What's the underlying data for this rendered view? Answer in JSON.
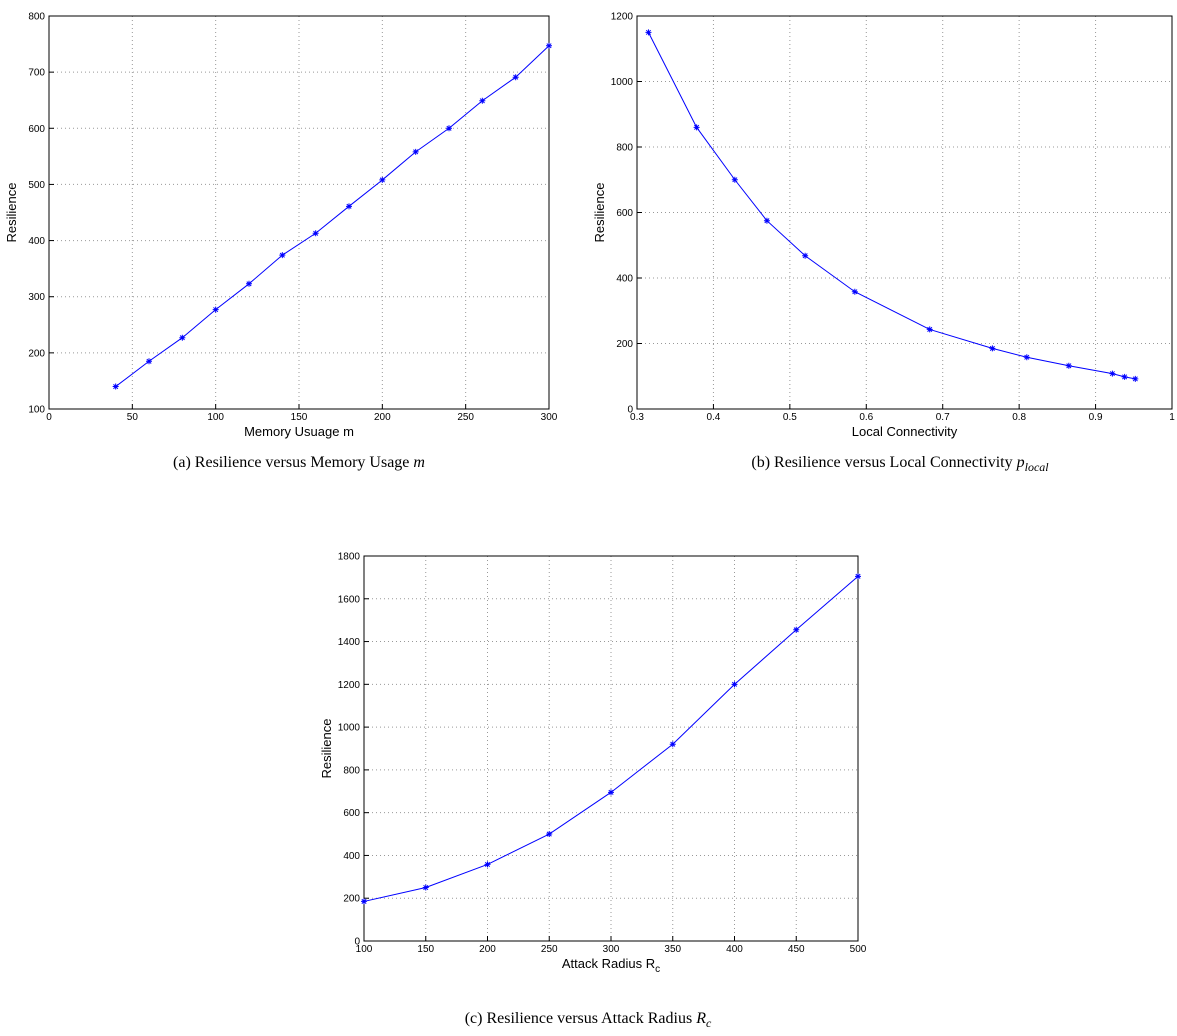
{
  "chart_data": [
    {
      "type": "line",
      "ylabel": "Resilience",
      "xlabel": "Memory Usuage m",
      "caption": "(a) Resilience versus Memory Usage ",
      "caption_symbol": "m",
      "x": [
        40,
        60,
        80,
        100,
        120,
        140,
        160,
        180,
        200,
        220,
        240,
        260,
        280,
        300
      ],
      "series": [
        {
          "color": "#0000ff",
          "values": [
            140,
            185,
            227,
            277,
            323,
            374,
            413,
            461,
            508,
            558,
            600,
            649,
            691,
            747
          ]
        }
      ],
      "xlim": [
        0,
        300
      ],
      "xticks": [
        0,
        50,
        100,
        150,
        200,
        250,
        300
      ],
      "ylim": [
        100,
        800
      ],
      "yticks": [
        100,
        200,
        300,
        400,
        500,
        600,
        700,
        800
      ],
      "grid": true
    },
    {
      "type": "line",
      "ylabel": "Resilience",
      "xlabel": "Local Connectivity",
      "caption": "(b) Resilience versus Local Connectivity ",
      "caption_symbol": "p",
      "caption_subscript": "local",
      "x": [
        0.315,
        0.378,
        0.428,
        0.47,
        0.52,
        0.585,
        0.683,
        0.765,
        0.81,
        0.865,
        0.922,
        0.938,
        0.952
      ],
      "series": [
        {
          "color": "#0000ff",
          "values": [
            1150,
            860,
            700,
            575,
            468,
            358,
            243,
            185,
            158,
            132,
            108,
            98,
            92
          ]
        }
      ],
      "xlim": [
        0.3,
        1
      ],
      "xticks": [
        0.3,
        0.4,
        0.5,
        0.6,
        0.7,
        0.8,
        0.9,
        1
      ],
      "ylim": [
        0,
        1200
      ],
      "yticks": [
        0,
        200,
        400,
        600,
        800,
        1000,
        1200
      ],
      "grid": true
    },
    {
      "type": "line",
      "ylabel": "Resilience",
      "xlabel": "Attack Radius R",
      "xlabel_subscript": "c",
      "caption": "(c) Resilience versus Attack Radius ",
      "caption_symbol": "R",
      "caption_subscript": "c",
      "x": [
        100,
        150,
        200,
        250,
        300,
        350,
        400,
        450,
        500
      ],
      "series": [
        {
          "color": "#0000ff",
          "values": [
            185,
            250,
            358,
            500,
            695,
            920,
            1200,
            1455,
            1705
          ]
        }
      ],
      "xlim": [
        100,
        500
      ],
      "xticks": [
        100,
        150,
        200,
        250,
        300,
        350,
        400,
        450,
        500
      ],
      "ylim": [
        0,
        1800
      ],
      "yticks": [
        0,
        200,
        400,
        600,
        800,
        1000,
        1200,
        1400,
        1600,
        1800
      ],
      "grid": true
    }
  ]
}
